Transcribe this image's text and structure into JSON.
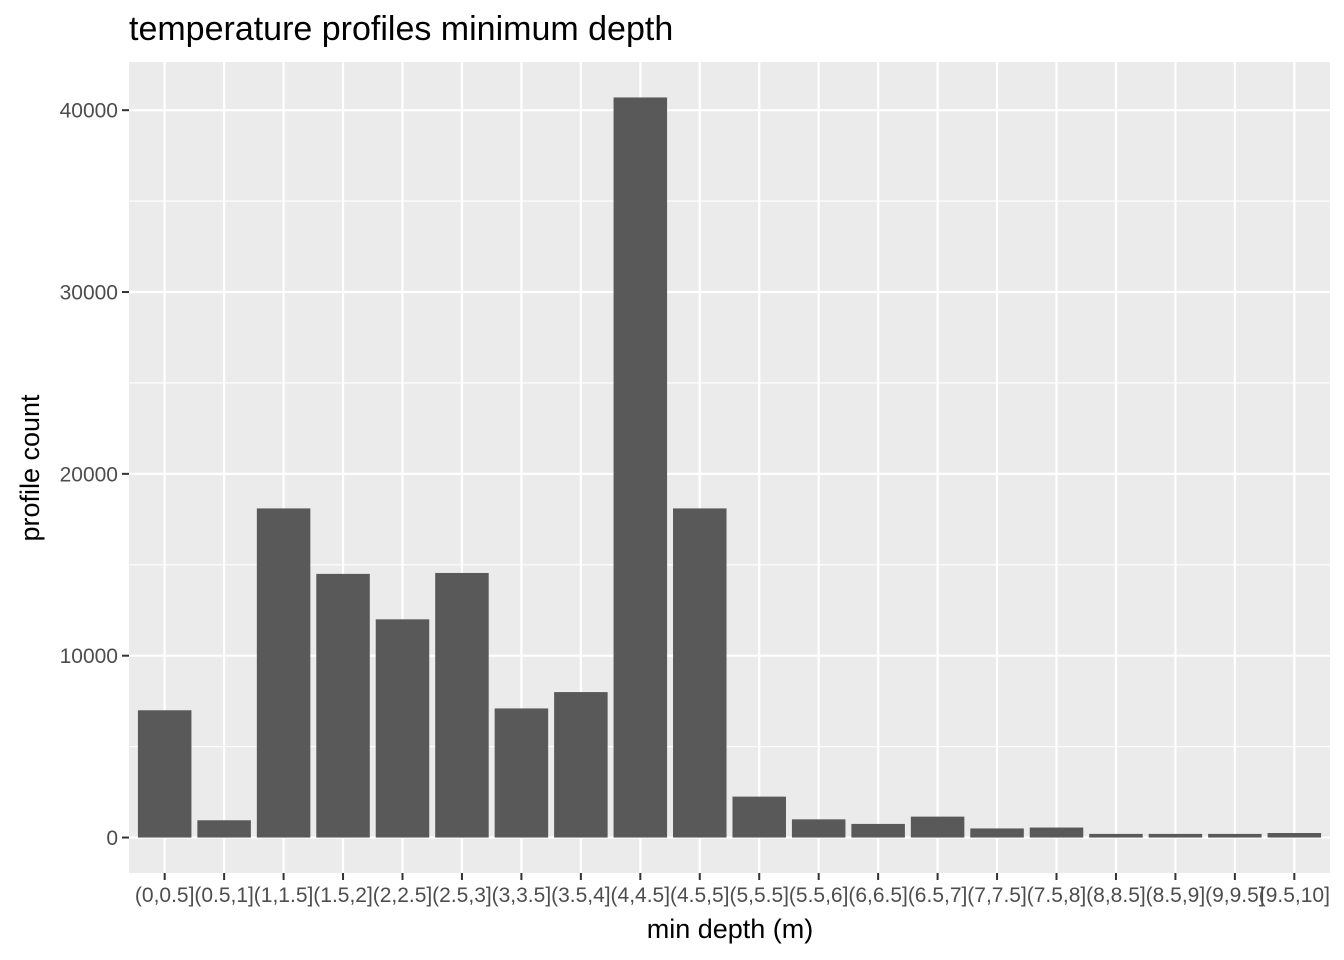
{
  "chart_data": {
    "type": "bar",
    "title": "temperature profiles minimum depth",
    "xlabel": "min depth (m)",
    "ylabel": "profile count",
    "categories": [
      "(0,0.5]",
      "(0.5,1]",
      "(1,1.5]",
      "(1.5,2]",
      "(2,2.5]",
      "(2.5,3]",
      "(3,3.5]",
      "(3.5,4]",
      "(4,4.5]",
      "(4.5,5]",
      "(5,5.5]",
      "(5.5,6]",
      "(6,6.5]",
      "(6.5,7]",
      "(7,7.5]",
      "(7.5,8]",
      "(8,8.5]",
      "(8.5,9]",
      "(9,9.5]",
      "(9.5,10]"
    ],
    "values": [
      7000,
      950,
      18100,
      14500,
      12000,
      14550,
      7100,
      8000,
      40700,
      18100,
      2250,
      1000,
      750,
      1150,
      500,
      550,
      200,
      200,
      200,
      250
    ],
    "ylim": [
      -1950,
      42650
    ],
    "yticks": [
      0,
      10000,
      20000,
      30000,
      40000
    ],
    "ytick_labels": [
      "0",
      "10000",
      "20000",
      "30000",
      "40000"
    ],
    "grid": true,
    "colors": {
      "panel": "#ebebeb",
      "grid": "#ffffff",
      "bar": "#595959",
      "tick": "#333333"
    }
  }
}
